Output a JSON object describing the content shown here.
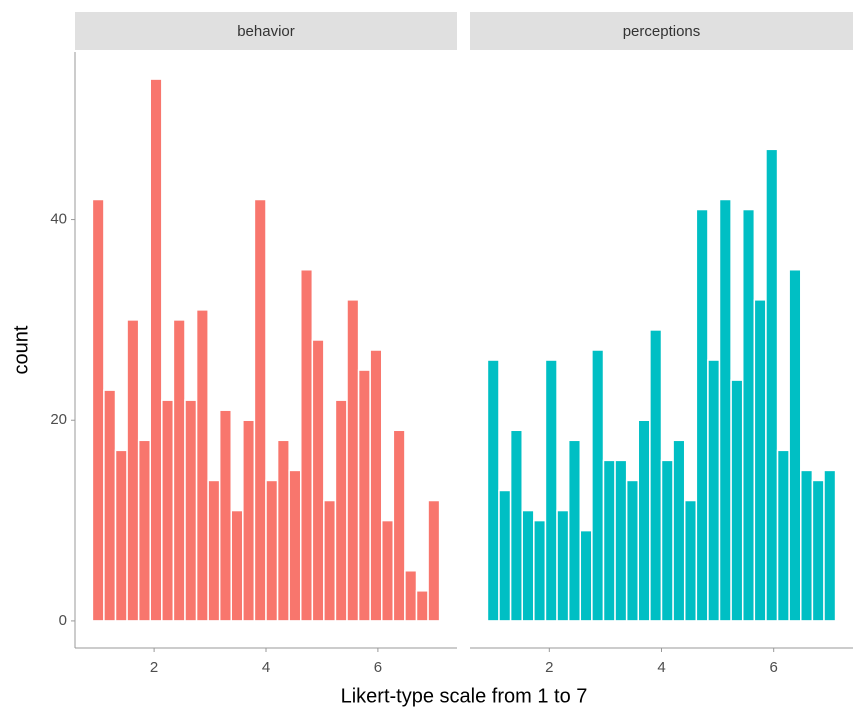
{
  "chart_data": {
    "type": "histogram",
    "x_label": "Likert-type scale from 1 to 7",
    "y_label": "count",
    "bins": [
      0.897,
      1.103,
      1.31,
      1.517,
      1.724,
      1.931,
      2.138,
      2.345,
      2.552,
      2.759,
      2.966,
      3.172,
      3.379,
      3.586,
      3.793,
      4.0,
      4.207,
      4.414,
      4.621,
      4.828,
      5.034,
      5.241,
      5.448,
      5.655,
      5.862,
      6.069,
      6.276,
      6.483,
      6.69,
      6.897,
      7.103
    ],
    "panels": [
      {
        "title": "behavior",
        "color": "#F8766D",
        "values": [
          42,
          23,
          17,
          30,
          18,
          54,
          22,
          30,
          22,
          31,
          14,
          21,
          11,
          20,
          42,
          14,
          18,
          15,
          35,
          28,
          12,
          22,
          32,
          25,
          27,
          10,
          19,
          5,
          3,
          12
        ]
      },
      {
        "title": "perceptions",
        "color": "#00BFC4",
        "values": [
          26,
          13,
          19,
          11,
          10,
          26,
          11,
          18,
          9,
          27,
          16,
          16,
          14,
          20,
          29,
          16,
          18,
          12,
          41,
          26,
          42,
          24,
          41,
          32,
          47,
          17,
          35,
          15,
          14,
          15
        ]
      }
    ],
    "xlim": [
      0.586,
      7.414
    ],
    "xticks": [
      2,
      4,
      6
    ],
    "ylim": [
      -2.7,
      56.7
    ],
    "yticks": [
      0,
      20,
      40
    ]
  }
}
